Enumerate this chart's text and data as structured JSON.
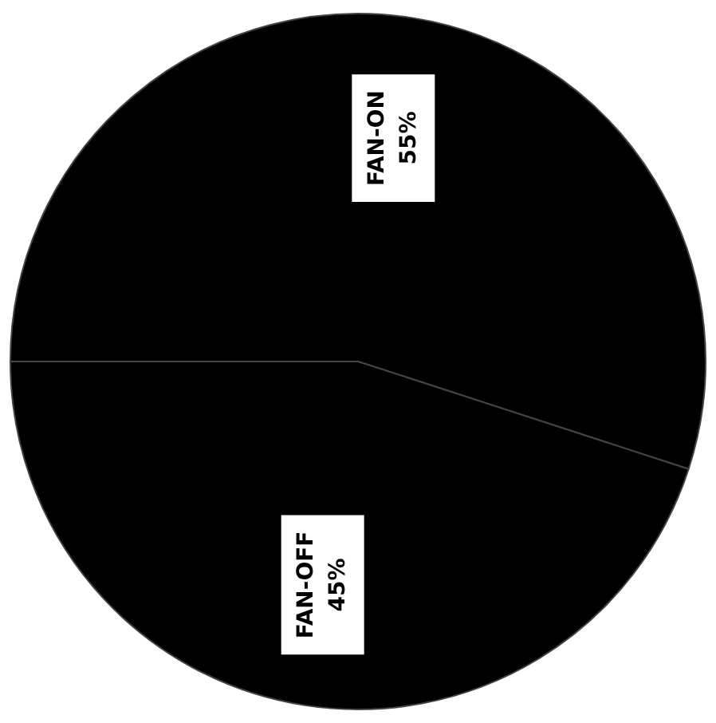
{
  "chart_data": {
    "type": "pie",
    "categories": [
      "FAN-ON",
      "FAN-OFF"
    ],
    "values": [
      55,
      45
    ],
    "colors": [
      "#000000",
      "#000000"
    ],
    "value_labels": [
      "55%",
      "45%"
    ],
    "legend": false
  }
}
